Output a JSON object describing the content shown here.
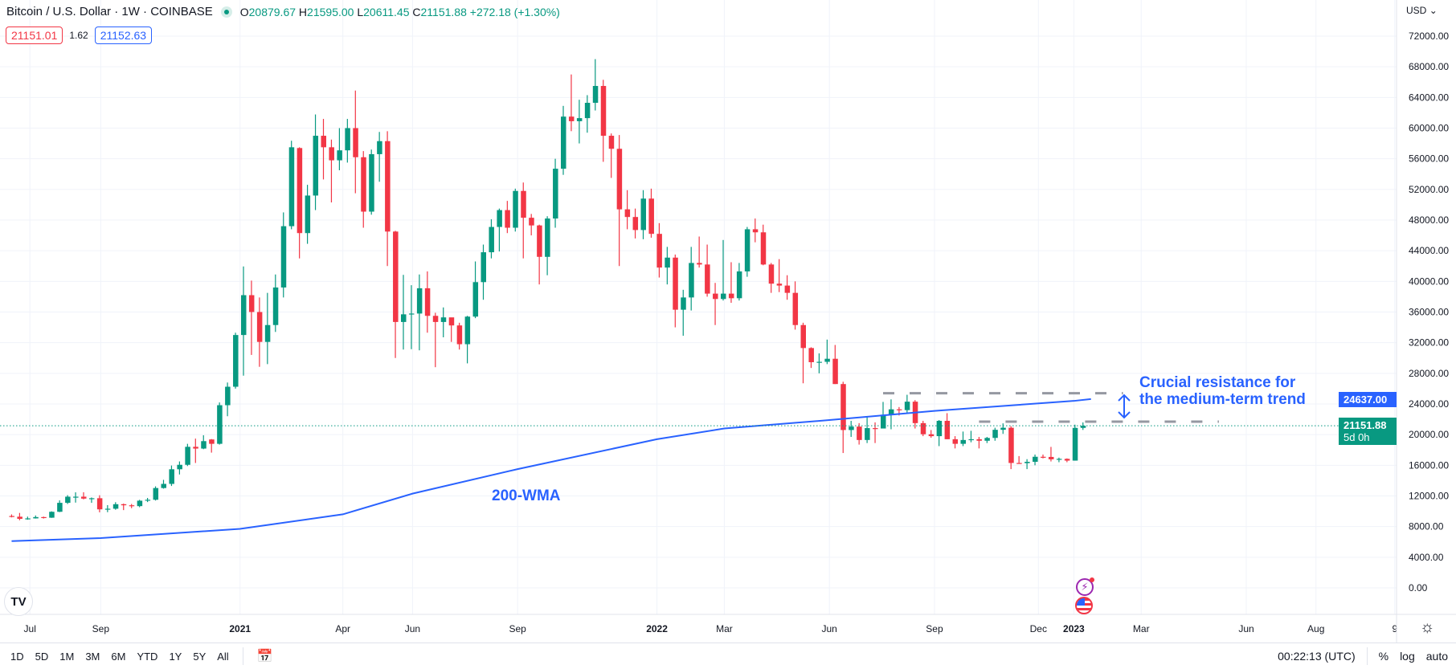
{
  "header": {
    "title": "Bitcoin / U.S. Dollar · 1W · COINBASE",
    "status_color": "#089981",
    "ohlc": {
      "o_label": "O",
      "o": "20879.67",
      "h_label": "H",
      "h": "21595.00",
      "l_label": "L",
      "l": "20611.45",
      "c_label": "C",
      "c": "21151.88",
      "change": "+272.18 (+1.30%)"
    },
    "bid": "21151.01",
    "spread": "1.62",
    "ask": "21152.63"
  },
  "price_axis": {
    "currency": "USD",
    "ticks": [
      "72000.00",
      "68000.00",
      "64000.00",
      "60000.00",
      "56000.00",
      "52000.00",
      "48000.00",
      "44000.00",
      "40000.00",
      "36000.00",
      "32000.00",
      "28000.00",
      "24000.00",
      "20000.00",
      "16000.00",
      "12000.00",
      "8000.00",
      "4000.00",
      "0.00"
    ]
  },
  "price_labels": {
    "wma": "24637.00",
    "last": "21151.88",
    "countdown": "5d 0h"
  },
  "annotations": {
    "wma": "200-WMA",
    "resistance_line1": "Crucial resistance for",
    "resistance_line2": "the medium-term trend"
  },
  "toolbar": {
    "ranges": [
      "1D",
      "5D",
      "1M",
      "3M",
      "6M",
      "YTD",
      "1Y",
      "5Y",
      "All"
    ],
    "time": "00:22:13 (UTC)",
    "percent": "%",
    "log": "log",
    "auto": "auto"
  },
  "colors": {
    "up": "#089981",
    "down": "#f23645",
    "wma": "#2962ff",
    "annotation": "#2962ff",
    "resistance": "#9598a1"
  },
  "chart_data": {
    "type": "candlestick",
    "interval": "1W",
    "ylim": [
      0,
      72000
    ],
    "grid": true,
    "x_ticks": [
      {
        "date": "2020-07-01",
        "label": "Jul"
      },
      {
        "date": "2020-09-01",
        "label": "Sep"
      },
      {
        "date": "2021-01-01",
        "label": "2021"
      },
      {
        "date": "2021-04-01",
        "label": "Apr"
      },
      {
        "date": "2021-06-01",
        "label": "Jun"
      },
      {
        "date": "2021-09-01",
        "label": "Sep"
      },
      {
        "date": "2022-01-01",
        "label": "2022"
      },
      {
        "date": "2022-03-01",
        "label": "Mar"
      },
      {
        "date": "2022-06-01",
        "label": "Jun"
      },
      {
        "date": "2022-09-01",
        "label": "Sep"
      },
      {
        "date": "2022-12-01",
        "label": "Dec"
      },
      {
        "date": "2023-01-01",
        "label": "2023"
      },
      {
        "date": "2023-03-01",
        "label": "Mar"
      },
      {
        "date": "2023-06-01",
        "label": "Jun"
      },
      {
        "date": "2023-08-01",
        "label": "Aug"
      },
      {
        "date": "2023-10-09",
        "label": "9"
      }
    ],
    "candles_format": [
      "week",
      "open",
      "high",
      "low",
      "close"
    ],
    "candles": [
      [
        "2020-06-15",
        9380,
        9590,
        9200,
        9290
      ],
      [
        "2020-06-22",
        9290,
        9780,
        8830,
        9010
      ],
      [
        "2020-06-29",
        9010,
        9300,
        8900,
        9070
      ],
      [
        "2020-07-06",
        9070,
        9450,
        9050,
        9240
      ],
      [
        "2020-07-13",
        9240,
        9300,
        9050,
        9160
      ],
      [
        "2020-07-20",
        9160,
        9990,
        9140,
        9930
      ],
      [
        "2020-07-27",
        9930,
        11420,
        9890,
        11100
      ],
      [
        "2020-08-03",
        11100,
        12100,
        10950,
        11900
      ],
      [
        "2020-08-10",
        11900,
        12470,
        11130,
        11900
      ],
      [
        "2020-08-17",
        11900,
        12480,
        11550,
        11650
      ],
      [
        "2020-08-24",
        11650,
        11800,
        11100,
        11700
      ],
      [
        "2020-08-31",
        11700,
        12090,
        9860,
        10250
      ],
      [
        "2020-09-07",
        10250,
        10800,
        9880,
        10330
      ],
      [
        "2020-09-14",
        10330,
        11180,
        10200,
        10920
      ],
      [
        "2020-09-21",
        10920,
        11000,
        10150,
        10780
      ],
      [
        "2020-09-28",
        10780,
        10950,
        10400,
        10670
      ],
      [
        "2020-10-05",
        10670,
        11490,
        10530,
        11380
      ],
      [
        "2020-10-12",
        11380,
        11740,
        11200,
        11500
      ],
      [
        "2020-10-19",
        11500,
        13250,
        11400,
        13030
      ],
      [
        "2020-10-26",
        13030,
        14100,
        12950,
        13570
      ],
      [
        "2020-11-02",
        13570,
        15970,
        13300,
        15480
      ],
      [
        "2020-11-09",
        15480,
        16500,
        14800,
        16060
      ],
      [
        "2020-11-16",
        16060,
        18800,
        15900,
        18410
      ],
      [
        "2020-11-23",
        18410,
        19480,
        16300,
        18180
      ],
      [
        "2020-11-30",
        18180,
        19920,
        18100,
        19150
      ],
      [
        "2020-12-07",
        19370,
        19420,
        17650,
        18800
      ],
      [
        "2020-12-14",
        18800,
        24200,
        18700,
        23840
      ],
      [
        "2020-12-21",
        23840,
        26800,
        22400,
        26250
      ],
      [
        "2020-12-28",
        26250,
        33300,
        26000,
        33000
      ],
      [
        "2021-01-04",
        33000,
        41950,
        27700,
        38200
      ],
      [
        "2021-01-11",
        38200,
        40100,
        30400,
        36000
      ],
      [
        "2021-01-18",
        36000,
        37900,
        28850,
        32100
      ],
      [
        "2021-01-25",
        32100,
        38500,
        29200,
        34300
      ],
      [
        "2021-02-01",
        34300,
        40900,
        33400,
        39200
      ],
      [
        "2021-02-08",
        39200,
        49000,
        37900,
        47200
      ],
      [
        "2021-02-15",
        47200,
        58350,
        46800,
        57500
      ],
      [
        "2021-02-22",
        57400,
        57500,
        43000,
        46300
      ],
      [
        "2021-03-01",
        46300,
        52600,
        44900,
        51200
      ],
      [
        "2021-03-08",
        51200,
        61780,
        49300,
        59000
      ],
      [
        "2021-03-15",
        59000,
        61200,
        53300,
        57500
      ],
      [
        "2021-03-22",
        57500,
        58500,
        50300,
        55800
      ],
      [
        "2021-03-29",
        55800,
        60000,
        54500,
        57100
      ],
      [
        "2021-04-05",
        57100,
        61200,
        55500,
        60000
      ],
      [
        "2021-04-12",
        60000,
        64900,
        51500,
        56200
      ],
      [
        "2021-04-19",
        56200,
        57000,
        47000,
        49100
      ],
      [
        "2021-04-26",
        49100,
        57200,
        48700,
        56600
      ],
      [
        "2021-05-03",
        56600,
        59500,
        53000,
        58300
      ],
      [
        "2021-05-10",
        58300,
        59600,
        42000,
        46500
      ],
      [
        "2021-05-17",
        46500,
        46600,
        30000,
        34700
      ],
      [
        "2021-05-24",
        34700,
        40850,
        31100,
        35700
      ],
      [
        "2021-05-31",
        35700,
        39500,
        31150,
        35800
      ],
      [
        "2021-06-07",
        35800,
        40900,
        31000,
        39100
      ],
      [
        "2021-06-14",
        39100,
        41300,
        33300,
        35500
      ],
      [
        "2021-06-21",
        35500,
        35900,
        28800,
        34700
      ],
      [
        "2021-06-28",
        34700,
        36600,
        32700,
        35300
      ],
      [
        "2021-07-05",
        35300,
        35000,
        32100,
        34250
      ],
      [
        "2021-07-12",
        34250,
        34600,
        31100,
        31800
      ],
      [
        "2021-07-19",
        31800,
        35500,
        29300,
        35400
      ],
      [
        "2021-07-26",
        35400,
        42600,
        35200,
        39900
      ],
      [
        "2021-08-02",
        39900,
        44800,
        37600,
        43800
      ],
      [
        "2021-08-09",
        43800,
        48100,
        43000,
        47100
      ],
      [
        "2021-08-16",
        47100,
        49500,
        43900,
        49300
      ],
      [
        "2021-08-23",
        49300,
        50500,
        46300,
        47000
      ],
      [
        "2021-08-30",
        47000,
        52100,
        46500,
        51800
      ],
      [
        "2021-09-06",
        51800,
        52900,
        43000,
        48300
      ],
      [
        "2021-09-13",
        48300,
        48800,
        46000,
        47300
      ],
      [
        "2021-09-20",
        47300,
        47400,
        39600,
        43200
      ],
      [
        "2021-09-27",
        43200,
        48500,
        40800,
        48200
      ],
      [
        "2021-10-04",
        48200,
        56000,
        47000,
        54700
      ],
      [
        "2021-10-11",
        54700,
        62900,
        53900,
        61500
      ],
      [
        "2021-10-18",
        61500,
        67000,
        59600,
        60900
      ],
      [
        "2021-10-25",
        60900,
        63700,
        58000,
        61300
      ],
      [
        "2021-11-01",
        61300,
        64300,
        59400,
        63300
      ],
      [
        "2021-11-08",
        63300,
        69000,
        62300,
        65500
      ],
      [
        "2021-11-15",
        65500,
        66300,
        55600,
        59000
      ],
      [
        "2021-11-22",
        59000,
        59300,
        53500,
        57300
      ],
      [
        "2021-11-29",
        57300,
        59100,
        42000,
        49400
      ],
      [
        "2021-12-06",
        49400,
        51900,
        46800,
        48400
      ],
      [
        "2021-12-13",
        48400,
        49500,
        45600,
        46700
      ],
      [
        "2021-12-20",
        46700,
        51900,
        45500,
        50800
      ],
      [
        "2021-12-27",
        50800,
        52100,
        45700,
        46200
      ],
      [
        "2022-01-03",
        46200,
        47600,
        40500,
        41800
      ],
      [
        "2022-01-10",
        41800,
        44500,
        39600,
        43100
      ],
      [
        "2022-01-17",
        43100,
        43500,
        34000,
        36300
      ],
      [
        "2022-01-24",
        36300,
        38900,
        32900,
        37900
      ],
      [
        "2022-01-31",
        37900,
        44500,
        36200,
        42400
      ],
      [
        "2022-02-07",
        42400,
        45850,
        41800,
        42200
      ],
      [
        "2022-02-14",
        42200,
        44800,
        38000,
        38400
      ],
      [
        "2022-02-21",
        38400,
        39800,
        34300,
        37700
      ],
      [
        "2022-02-28",
        37700,
        45400,
        37500,
        38400
      ],
      [
        "2022-03-07",
        38400,
        42500,
        37200,
        37800
      ],
      [
        "2022-03-14",
        37800,
        42400,
        37500,
        41300
      ],
      [
        "2022-03-21",
        41300,
        47100,
        40600,
        46800
      ],
      [
        "2022-03-28",
        46800,
        48200,
        45100,
        46400
      ],
      [
        "2022-04-04",
        46400,
        47400,
        42100,
        42200
      ],
      [
        "2022-04-11",
        42200,
        42400,
        38500,
        39700
      ],
      [
        "2022-04-18",
        39700,
        42900,
        38600,
        39450
      ],
      [
        "2022-04-25",
        39450,
        40800,
        37600,
        38500
      ],
      [
        "2022-05-02",
        38500,
        40000,
        33700,
        34300
      ],
      [
        "2022-05-09",
        34300,
        34600,
        26700,
        31300
      ],
      [
        "2022-05-16",
        31300,
        31400,
        28700,
        29450
      ],
      [
        "2022-05-23",
        29450,
        30600,
        28000,
        29500
      ],
      [
        "2022-05-30",
        29500,
        32400,
        29200,
        29900
      ],
      [
        "2022-06-06",
        29900,
        31700,
        26600,
        26600
      ],
      [
        "2022-06-13",
        26600,
        26900,
        17600,
        20600
      ],
      [
        "2022-06-20",
        20600,
        21800,
        19700,
        21050
      ],
      [
        "2022-06-27",
        21050,
        21500,
        18700,
        19300
      ],
      [
        "2022-07-04",
        19300,
        22400,
        18900,
        20850
      ],
      [
        "2022-07-11",
        20850,
        21600,
        18900,
        20800
      ],
      [
        "2022-07-18",
        20800,
        24270,
        20800,
        22600
      ],
      [
        "2022-07-25",
        22600,
        24600,
        20700,
        23300
      ],
      [
        "2022-08-01",
        23300,
        23600,
        22500,
        23200
      ],
      [
        "2022-08-08",
        23200,
        25200,
        22700,
        24300
      ],
      [
        "2022-08-15",
        24300,
        24500,
        20800,
        21500
      ],
      [
        "2022-08-22",
        21500,
        21800,
        19800,
        20050
      ],
      [
        "2022-08-29",
        20050,
        20600,
        19600,
        19800
      ],
      [
        "2022-09-05",
        19800,
        21900,
        18500,
        21800
      ],
      [
        "2022-09-12",
        21800,
        22800,
        19400,
        19400
      ],
      [
        "2022-09-19",
        19400,
        19800,
        18200,
        18800
      ],
      [
        "2022-09-26",
        18800,
        20400,
        18500,
        19300
      ],
      [
        "2022-10-03",
        19300,
        20500,
        19000,
        19400
      ],
      [
        "2022-10-10",
        19400,
        19700,
        18200,
        19200
      ],
      [
        "2022-10-17",
        19200,
        19700,
        18900,
        19570
      ],
      [
        "2022-10-24",
        19570,
        20900,
        19200,
        20630
      ],
      [
        "2022-10-31",
        20630,
        21470,
        20100,
        20900
      ],
      [
        "2022-11-07",
        20900,
        21100,
        15500,
        16300
      ],
      [
        "2022-11-14",
        16300,
        17200,
        16200,
        16280
      ],
      [
        "2022-11-21",
        16280,
        16800,
        15500,
        16450
      ],
      [
        "2022-11-28",
        16450,
        17400,
        16000,
        17110
      ],
      [
        "2022-12-05",
        17110,
        17400,
        16900,
        17090
      ],
      [
        "2022-12-12",
        17090,
        18400,
        16500,
        16780
      ],
      [
        "2022-12-19",
        16780,
        17000,
        16400,
        16840
      ],
      [
        "2022-12-26",
        16840,
        16900,
        16400,
        16610
      ],
      [
        "2023-01-02",
        16610,
        21300,
        16600,
        20880
      ],
      [
        "2023-01-09",
        20879.67,
        21595,
        20611.45,
        21151.88
      ]
    ],
    "indicators": [
      {
        "name": "200-WMA",
        "type": "line",
        "points": [
          [
            "2020-06-15",
            6100
          ],
          [
            "2020-09-01",
            6500
          ],
          [
            "2021-01-01",
            7700
          ],
          [
            "2021-04-01",
            9600
          ],
          [
            "2021-06-01",
            12300
          ],
          [
            "2021-09-01",
            15500
          ],
          [
            "2022-01-01",
            19400
          ],
          [
            "2022-03-01",
            20800
          ],
          [
            "2022-06-01",
            21900
          ],
          [
            "2022-09-01",
            23100
          ],
          [
            "2023-01-01",
            24400
          ],
          [
            "2023-01-16",
            24637
          ]
        ]
      }
    ],
    "horizontal_levels": [
      {
        "value": 25400,
        "style": "dashed",
        "from": "2022-07-18",
        "to": "2023-02-13"
      },
      {
        "value": 21700,
        "style": "dashed",
        "from": "2022-10-10",
        "to": "2023-05-08"
      },
      {
        "value": 21151.88,
        "style": "dotted",
        "label": "last price"
      }
    ]
  }
}
